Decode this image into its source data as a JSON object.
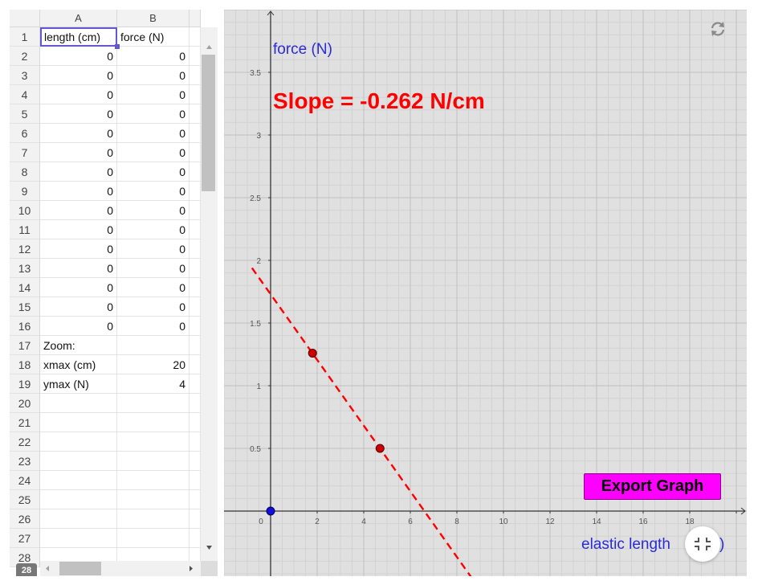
{
  "spreadsheet": {
    "columns": [
      "A",
      "B"
    ],
    "selected_cell": "A1",
    "rows": [
      {
        "n": "1",
        "a": "length (cm)",
        "b": "force (N)",
        "a_num": false,
        "b_num": false
      },
      {
        "n": "2",
        "a": "0",
        "b": "0",
        "a_num": true,
        "b_num": true
      },
      {
        "n": "3",
        "a": "0",
        "b": "0",
        "a_num": true,
        "b_num": true
      },
      {
        "n": "4",
        "a": "0",
        "b": "0",
        "a_num": true,
        "b_num": true
      },
      {
        "n": "5",
        "a": "0",
        "b": "0",
        "a_num": true,
        "b_num": true
      },
      {
        "n": "6",
        "a": "0",
        "b": "0",
        "a_num": true,
        "b_num": true
      },
      {
        "n": "7",
        "a": "0",
        "b": "0",
        "a_num": true,
        "b_num": true
      },
      {
        "n": "8",
        "a": "0",
        "b": "0",
        "a_num": true,
        "b_num": true
      },
      {
        "n": "9",
        "a": "0",
        "b": "0",
        "a_num": true,
        "b_num": true
      },
      {
        "n": "10",
        "a": "0",
        "b": "0",
        "a_num": true,
        "b_num": true
      },
      {
        "n": "11",
        "a": "0",
        "b": "0",
        "a_num": true,
        "b_num": true
      },
      {
        "n": "12",
        "a": "0",
        "b": "0",
        "a_num": true,
        "b_num": true
      },
      {
        "n": "13",
        "a": "0",
        "b": "0",
        "a_num": true,
        "b_num": true
      },
      {
        "n": "14",
        "a": "0",
        "b": "0",
        "a_num": true,
        "b_num": true
      },
      {
        "n": "15",
        "a": "0",
        "b": "0",
        "a_num": true,
        "b_num": true
      },
      {
        "n": "16",
        "a": "0",
        "b": "0",
        "a_num": true,
        "b_num": true
      },
      {
        "n": "17",
        "a": "Zoom:",
        "b": "",
        "a_num": false,
        "b_num": false
      },
      {
        "n": "18",
        "a": "xmax (cm)",
        "b": "20",
        "a_num": false,
        "b_num": true
      },
      {
        "n": "19",
        "a": "ymax (N)",
        "b": "4",
        "a_num": false,
        "b_num": true
      },
      {
        "n": "20",
        "a": "",
        "b": "",
        "a_num": false,
        "b_num": false
      },
      {
        "n": "21",
        "a": "",
        "b": "",
        "a_num": false,
        "b_num": false
      },
      {
        "n": "22",
        "a": "",
        "b": "",
        "a_num": false,
        "b_num": false
      },
      {
        "n": "23",
        "a": "",
        "b": "",
        "a_num": false,
        "b_num": false
      },
      {
        "n": "24",
        "a": "",
        "b": "",
        "a_num": false,
        "b_num": false
      },
      {
        "n": "25",
        "a": "",
        "b": "",
        "a_num": false,
        "b_num": false
      },
      {
        "n": "26",
        "a": "",
        "b": "",
        "a_num": false,
        "b_num": false
      },
      {
        "n": "27",
        "a": "",
        "b": "",
        "a_num": false,
        "b_num": false
      },
      {
        "n": "28",
        "a": "",
        "b": "",
        "a_num": false,
        "b_num": false
      }
    ],
    "keyboard_icon": "keyboard-icon"
  },
  "graph": {
    "ylabel": "force (N)",
    "xlabel": "elastic length",
    "xlabel_suffix": ")",
    "slope_text": "Slope = -0.262 N/cm",
    "export_label": "Export Graph",
    "reset_icon": "reset-icon",
    "fullscreen_icon": "exit-fullscreen-icon",
    "colors": {
      "background": "#e0e0e0",
      "axis_label": "#2b2bd4",
      "slope_text": "#ff0000",
      "fit_line": "#ff0000",
      "point_fill": "#cc0000",
      "origin_point": "#1010dd",
      "export_button": "#ff00ff"
    }
  },
  "chart_data": {
    "type": "scatter",
    "xlim": [
      0,
      19.4
    ],
    "ylim": [
      -0.5,
      3.9
    ],
    "x_ticks": [
      0,
      2,
      4,
      6,
      8,
      10,
      12,
      14,
      16,
      18
    ],
    "y_ticks": [
      "0.5",
      "1",
      "1.5",
      "2",
      "2.5",
      "3",
      "3.5"
    ],
    "y_tick_values": [
      0.5,
      1,
      1.5,
      2,
      2.5,
      3,
      3.5
    ],
    "minor_grid_step_x": 0.5,
    "minor_grid_step_y": 0.1,
    "major_grid_step_x": 2,
    "major_grid_step_y": 0.5,
    "points": [
      {
        "x": 1.8,
        "y": 1.26
      },
      {
        "x": 4.7,
        "y": 0.5
      }
    ],
    "origin_point": {
      "x": 0,
      "y": 0
    },
    "fit_line": {
      "slope": -0.262,
      "intercept": 1.73,
      "dashed": true
    },
    "grid": true
  }
}
